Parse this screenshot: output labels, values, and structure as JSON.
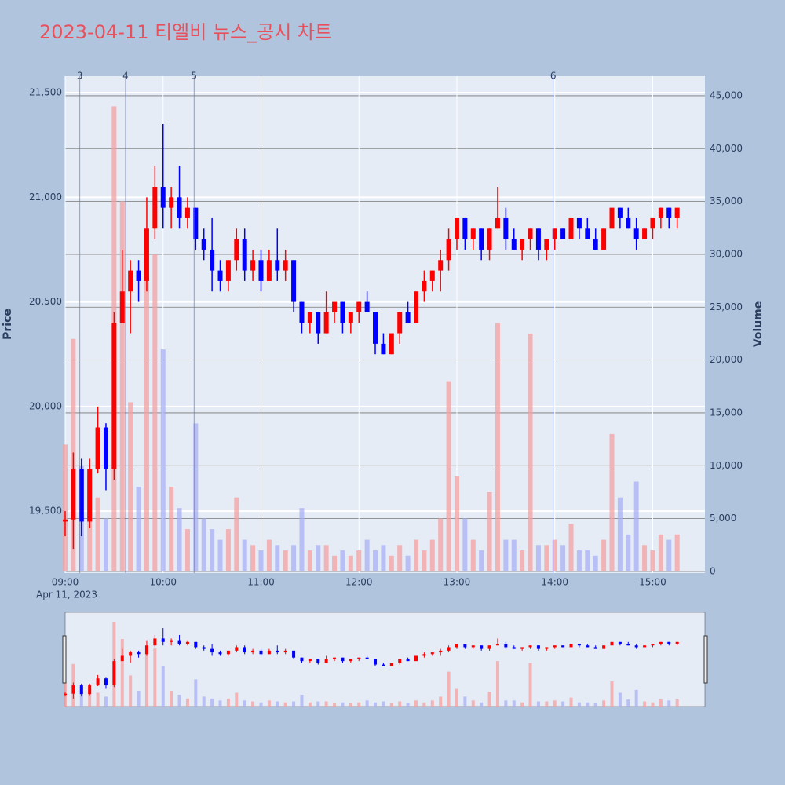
{
  "chart_data": {
    "type": "candlestick",
    "title": "2023-04-11 티엘비 뉴스_공시 차트",
    "y_label": "Price",
    "y2_label": "Volume",
    "x_date_label": "Apr 11, 2023",
    "increasing_color": "#ff0000",
    "decreasing_color": "#0000ff",
    "x": [
      "09:00",
      "09:05",
      "09:10",
      "09:15",
      "09:20",
      "09:25",
      "09:30",
      "09:35",
      "09:40",
      "09:45",
      "09:50",
      "09:55",
      "10:00",
      "10:05",
      "10:10",
      "10:15",
      "10:20",
      "10:25",
      "10:30",
      "10:35",
      "10:40",
      "10:45",
      "10:50",
      "10:55",
      "11:00",
      "11:05",
      "11:10",
      "11:15",
      "11:20",
      "11:25",
      "11:30",
      "11:35",
      "11:40",
      "11:45",
      "11:50",
      "11:55",
      "12:00",
      "12:05",
      "12:10",
      "12:15",
      "12:20",
      "12:25",
      "12:30",
      "12:35",
      "12:40",
      "12:45",
      "12:50",
      "12:55",
      "13:00",
      "13:05",
      "13:10",
      "13:15",
      "13:20",
      "13:25",
      "13:30",
      "13:35",
      "13:40",
      "13:45",
      "13:50",
      "13:55",
      "14:00",
      "14:05",
      "14:10",
      "14:15",
      "14:20",
      "14:25",
      "14:30",
      "14:35",
      "14:40",
      "14:45",
      "14:50",
      "14:55",
      "15:00",
      "15:05",
      "15:10",
      "15:15"
    ],
    "open": [
      19450,
      19460,
      19700,
      19450,
      19700,
      19900,
      19700,
      20400,
      20550,
      20650,
      20600,
      20850,
      21050,
      20950,
      21000,
      20900,
      20950,
      20800,
      20750,
      20650,
      20600,
      20700,
      20800,
      20650,
      20700,
      20600,
      20700,
      20650,
      20700,
      20500,
      20400,
      20450,
      20350,
      20450,
      20500,
      20400,
      20450,
      20500,
      20450,
      20300,
      20250,
      20350,
      20450,
      20400,
      20550,
      20600,
      20650,
      20700,
      20800,
      20900,
      20800,
      20850,
      20750,
      20850,
      20900,
      20800,
      20750,
      20800,
      20850,
      20750,
      20800,
      20850,
      20800,
      20900,
      20850,
      20800,
      20750,
      20850,
      20950,
      20900,
      20850,
      20800,
      20850,
      20900,
      20950,
      20900
    ],
    "high": [
      19500,
      19780,
      19750,
      19750,
      20000,
      19920,
      20450,
      20750,
      20700,
      20700,
      21000,
      21150,
      21350,
      21050,
      21150,
      21000,
      20950,
      20850,
      20900,
      20700,
      20700,
      20850,
      20850,
      20750,
      20750,
      20750,
      20850,
      20750,
      20700,
      20500,
      20450,
      20450,
      20550,
      20500,
      20500,
      20450,
      20500,
      20550,
      20450,
      20350,
      20350,
      20450,
      20500,
      20550,
      20650,
      20650,
      20750,
      20850,
      20900,
      20900,
      20850,
      20850,
      20850,
      21050,
      20950,
      20850,
      20800,
      20850,
      20850,
      20800,
      20850,
      20850,
      20900,
      20900,
      20900,
      20850,
      20850,
      20950,
      20950,
      20950,
      20900,
      20850,
      20900,
      20950,
      20950,
      20950
    ],
    "low": [
      19380,
      19320,
      19380,
      19420,
      19680,
      19600,
      19650,
      20400,
      20350,
      20500,
      20550,
      20800,
      20850,
      20850,
      20850,
      20850,
      20750,
      20700,
      20550,
      20550,
      20550,
      20650,
      20600,
      20600,
      20550,
      20600,
      20600,
      20600,
      20450,
      20350,
      20350,
      20300,
      20350,
      20400,
      20350,
      20350,
      20400,
      20450,
      20250,
      20250,
      20250,
      20300,
      20400,
      20400,
      20500,
      20550,
      20550,
      20650,
      20750,
      20750,
      20750,
      20700,
      20700,
      20850,
      20750,
      20750,
      20700,
      20750,
      20700,
      20700,
      20750,
      20800,
      20800,
      20800,
      20800,
      20750,
      20750,
      20850,
      20850,
      20850,
      20750,
      20800,
      20800,
      20850,
      20850,
      20850
    ],
    "close": [
      19460,
      19700,
      19450,
      19700,
      19900,
      19700,
      20400,
      20550,
      20650,
      20600,
      20850,
      21050,
      20950,
      21000,
      20900,
      20950,
      20800,
      20750,
      20650,
      20600,
      20700,
      20800,
      20650,
      20700,
      20600,
      20700,
      20650,
      20700,
      20500,
      20400,
      20450,
      20350,
      20450,
      20500,
      20400,
      20450,
      20500,
      20450,
      20300,
      20250,
      20350,
      20450,
      20400,
      20550,
      20600,
      20650,
      20700,
      20800,
      20900,
      20800,
      20850,
      20750,
      20850,
      20900,
      20800,
      20750,
      20800,
      20850,
      20750,
      20800,
      20850,
      20800,
      20900,
      20850,
      20800,
      20750,
      20850,
      20950,
      20900,
      20850,
      20800,
      20850,
      20900,
      20950,
      20900,
      20950
    ],
    "volume": [
      12000,
      22000,
      10000,
      9000,
      7000,
      5000,
      44000,
      35000,
      16000,
      8000,
      28000,
      30000,
      21000,
      8000,
      6000,
      4000,
      14000,
      5000,
      4000,
      3000,
      4000,
      7000,
      3000,
      2500,
      2000,
      3000,
      2500,
      2000,
      2500,
      6000,
      2000,
      2500,
      2500,
      1500,
      2000,
      1500,
      2000,
      3000,
      2000,
      2500,
      1500,
      2500,
      1500,
      3000,
      2000,
      3000,
      5000,
      18000,
      9000,
      5000,
      3000,
      2000,
      7500,
      23500,
      3000,
      3000,
      2000,
      22500,
      2500,
      2500,
      3000,
      2500,
      4500,
      2000,
      2000,
      1500,
      3000,
      13000,
      7000,
      3500,
      8500,
      2500,
      2000,
      3500,
      3000,
      3500
    ],
    "xlim": [
      "09:00",
      "15:32"
    ],
    "xticks": [
      "09:00",
      "10:00",
      "11:00",
      "12:00",
      "13:00",
      "14:00",
      "15:00"
    ],
    "ylim": [
      19204,
      21579
    ],
    "yticks": [
      {
        "value": 19500,
        "label": "19,500"
      },
      {
        "value": 20000,
        "label": "20,000"
      },
      {
        "value": 20500,
        "label": "20,500"
      },
      {
        "value": 21000,
        "label": "21,000"
      },
      {
        "value": 21500,
        "label": "21,500"
      }
    ],
    "y2lim": [
      -150,
      46850
    ],
    "y2ticks": [
      0,
      {
        "value": 5000,
        "label": "5,000"
      },
      {
        "value": 10000,
        "label": "10,000"
      },
      {
        "value": 15000,
        "label": "15,000"
      },
      {
        "value": 20000,
        "label": "20,000"
      },
      {
        "value": 25000,
        "label": "25,000"
      },
      {
        "value": 30000,
        "label": "30,000"
      },
      {
        "value": 35000,
        "label": "35,000"
      },
      {
        "value": 40000,
        "label": "40,000"
      },
      {
        "value": 45000,
        "label": "45,000"
      }
    ],
    "annotations": [
      {
        "label": "3",
        "x": "09:09"
      },
      {
        "label": "4",
        "x": "09:37"
      },
      {
        "label": "5",
        "x": "10:19"
      },
      {
        "label": "6",
        "x": "13:59"
      }
    ],
    "grid": true,
    "rangeslider": true
  }
}
